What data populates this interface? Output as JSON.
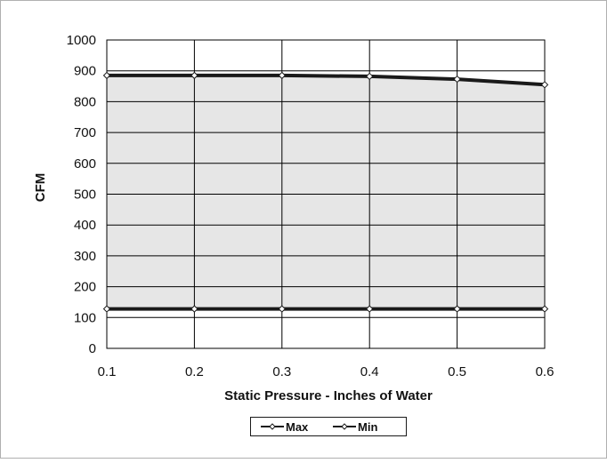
{
  "chart_data": {
    "type": "area",
    "title": "",
    "xlabel": "Static Pressure - Inches of Water",
    "ylabel": "CFM",
    "x": [
      0.1,
      0.2,
      0.3,
      0.4,
      0.5,
      0.6
    ],
    "x_tick_labels": [
      "0.1",
      "0.2",
      "0.3",
      "0.4",
      "0.5",
      "0.6"
    ],
    "y_tick_labels": [
      "0",
      "100",
      "200",
      "300",
      "400",
      "500",
      "600",
      "700",
      "800",
      "900",
      "1000"
    ],
    "xlim": [
      0.1,
      0.6
    ],
    "ylim": [
      0,
      1000
    ],
    "grid": true,
    "legend_position": "bottom",
    "series": [
      {
        "name": "Max",
        "values": [
          885,
          885,
          885,
          882,
          873,
          855
        ]
      },
      {
        "name": "Min",
        "values": [
          128,
          128,
          128,
          128,
          128,
          128
        ]
      }
    ],
    "fill_between_series": true,
    "colors": {
      "line": "#1a1a1a",
      "fill": "#e6e6e6",
      "grid": "#000000",
      "frame": "#b0b0b0",
      "background": "#ffffff"
    }
  }
}
